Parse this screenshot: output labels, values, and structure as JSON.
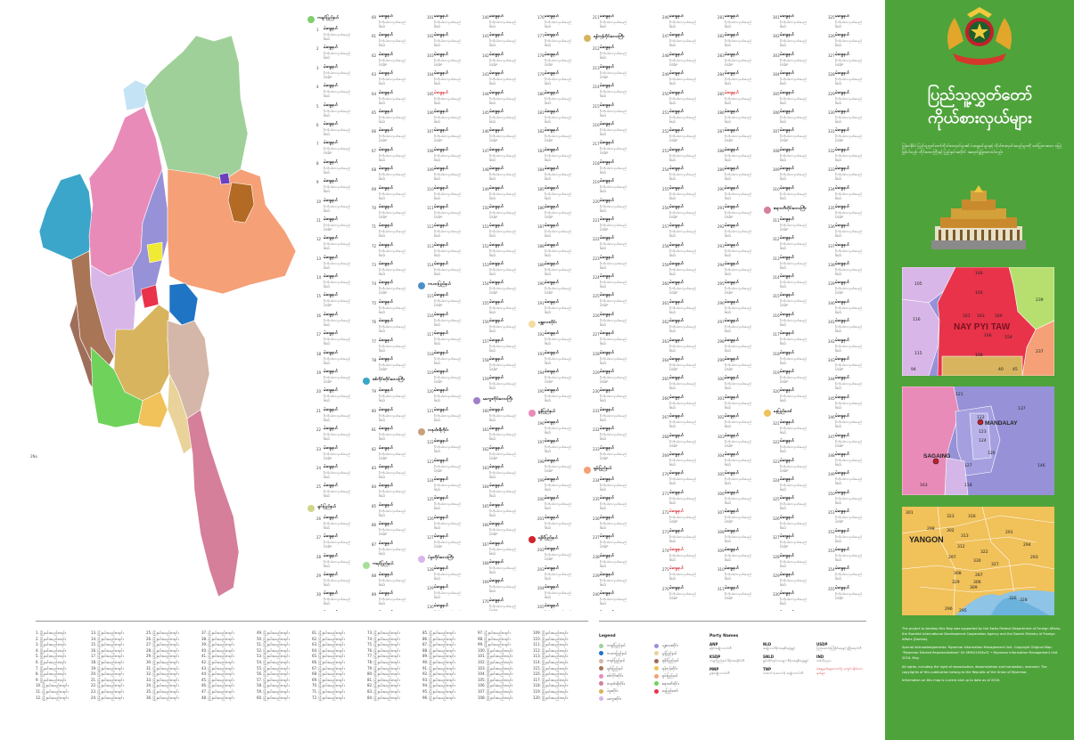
{
  "title": {
    "line1": "ပြည်သူ့လွှတ်တော်",
    "line2": "ကိုယ်စားလှယ်များ"
  },
  "intro": "မြန်မာနိုင်ငံ ပြည်သူ့လွှတ်တော်ကိုယ်စားလှယ်များ၏ မဲဆန္ဒနယ်များနှင့် ကိုယ်စားလှယ်အမည်များကို ဖော်ပြထားသော မြေပုံဖြစ်ပါသည်။ တိုင်းဒေသကြီးနှင့် ပြည်နယ်အလိုက် အရောင်ခွဲခြားထားပါသည်။",
  "colors": {
    "panel_green": "#4fa33b",
    "accent_red": "#d1232a"
  },
  "regions": [
    {
      "id": "kachin",
      "color": "#9fd09a"
    },
    {
      "id": "sagaing",
      "color": "#e98bb8"
    },
    {
      "id": "chin",
      "color": "#a87556"
    },
    {
      "id": "magway",
      "color": "#d8b6e8"
    },
    {
      "id": "mandalay",
      "color": "#9791d8"
    },
    {
      "id": "shan",
      "color": "#f5a077"
    },
    {
      "id": "kayah",
      "color": "#1f74c4"
    },
    {
      "id": "kayin",
      "color": "#d4b7a8"
    },
    {
      "id": "rakhine",
      "color": "#9f6e5a"
    },
    {
      "id": "bago",
      "color": "#d8b45f"
    },
    {
      "id": "ayeyarwady",
      "color": "#6fd25a"
    },
    {
      "id": "yangon",
      "color": "#f1c15a"
    },
    {
      "id": "mon",
      "color": "#e9d39a"
    },
    {
      "id": "tanintharyi",
      "color": "#d57f9b"
    },
    {
      "id": "naypyitaw",
      "color": "#e8334a"
    },
    {
      "id": "sagaing_nw",
      "color": "#3ba6c9"
    },
    {
      "id": "kachin_n",
      "color": "#c4e4f6"
    },
    {
      "id": "wa",
      "color": "#b26a24"
    },
    {
      "id": "kokang",
      "color": "#f0ea35"
    },
    {
      "id": "danu",
      "color": "#6b3fbe"
    }
  ],
  "map_labels": {
    "sample_num": "2No"
  },
  "list_columns": [
    {
      "head": {
        "label": "ကချင်ပြည်နယ်",
        "color": "#7fcf6f"
      },
      "start": 1,
      "count": 31,
      "reds": []
    },
    {
      "head": null,
      "start": 60,
      "count": 31,
      "reds": []
    },
    {
      "head": null,
      "start": 101,
      "count": 31,
      "reds": [
        4
      ]
    },
    {
      "head": null,
      "start": 140,
      "count": 31,
      "reds": []
    },
    {
      "head": null,
      "start": 176,
      "count": 31,
      "reds": []
    },
    {
      "head": null,
      "start": 211,
      "count": 31,
      "reds": []
    },
    {
      "head": null,
      "start": 246,
      "count": 31,
      "reds": [
        26,
        28,
        29
      ]
    },
    {
      "head": null,
      "start": 281,
      "count": 31,
      "reds": [
        4
      ]
    },
    {
      "head": null,
      "start": 301,
      "count": 31,
      "reds": []
    },
    {
      "head": null,
      "start": 325,
      "count": 31,
      "reds": []
    }
  ],
  "list_region_heads": [
    {
      "col": 1,
      "after": 19,
      "label": "စစ်ကိုင်းတိုင်းဒေသကြီး",
      "color": "#3ba6c9"
    },
    {
      "col": 0,
      "after": 25,
      "label": "ချင်းပြည်နယ်",
      "color": "#d0d58a"
    },
    {
      "col": 1,
      "after": 28,
      "label": "ကရင်ပြည်နယ်",
      "color": "#a6df9a"
    },
    {
      "col": 2,
      "after": 14,
      "label": "ကယားပြည်နယ်",
      "color": "#4c8fc7"
    },
    {
      "col": 2,
      "after": 21,
      "label": "တနင်္သာရီတိုင်း",
      "color": "#c7a27e"
    },
    {
      "col": 2,
      "after": 27,
      "label": "ပဲခူးတိုင်းဒေသကြီး",
      "color": "#d8b6e8"
    },
    {
      "col": 3,
      "after": 20,
      "label": "မကွေးတိုင်းဒေသကြီး",
      "color": "#a07fc9"
    },
    {
      "col": 4,
      "after": 16,
      "label": "မန္တလေးတိုင်း",
      "color": "#f4dca0"
    },
    {
      "col": 4,
      "after": 20,
      "label": "မွန်ပြည်နယ်",
      "color": "#e98bb8"
    },
    {
      "col": 4,
      "after": 26,
      "label": "ရခိုင်ပြည်နယ်",
      "color": "#d1232a"
    },
    {
      "col": 5,
      "after": 1,
      "label": "ရန်ကုန်တိုင်းဒေသကြီး",
      "color": "#d8b45f"
    },
    {
      "col": 5,
      "after": 23,
      "label": "ရှမ်းပြည်နယ်",
      "color": "#f5a077"
    },
    {
      "col": 8,
      "after": 10,
      "label": "ဧရာဝတီတိုင်းဒေသကြီး",
      "color": "#d57f9b"
    },
    {
      "col": 8,
      "after": 20,
      "label": "နေပြည်တော်",
      "color": "#f1c15a"
    }
  ],
  "list_text": {
    "name": "မဲဆန္ဒနယ်",
    "candidate": "ဦးကိုယ်စားလှယ်အမည်",
    "party": "NLD",
    "party_alt": "USDP"
  },
  "bottom_lists": {
    "columns": 10,
    "rows": 12,
    "item": "မြို့နယ်အမည်စာရင်း"
  },
  "legend": {
    "title": "Legend",
    "items": [
      {
        "label": "ကချင်ပြည်နယ်",
        "color": "#9fd09a"
      },
      {
        "label": "ကယားပြည်နယ်",
        "color": "#1f74c4"
      },
      {
        "label": "ကရင်ပြည်နယ်",
        "color": "#d4b7a8"
      },
      {
        "label": "ချင်းပြည်နယ်",
        "color": "#a87556"
      },
      {
        "label": "စစ်ကိုင်းတိုင်း",
        "color": "#e98bb8"
      },
      {
        "label": "တနင်္သာရီတိုင်း",
        "color": "#d57f9b"
      },
      {
        "label": "ပဲခူးတိုင်း",
        "color": "#d8b45f"
      },
      {
        "label": "မကွေးတိုင်း",
        "color": "#d8b6e8"
      },
      {
        "label": "မန္တလေးတိုင်း",
        "color": "#9791d8"
      },
      {
        "label": "မွန်ပြည်နယ်",
        "color": "#e9d39a"
      },
      {
        "label": "ရခိုင်ပြည်နယ်",
        "color": "#9f6e5a"
      },
      {
        "label": "ရန်ကုန်တိုင်း",
        "color": "#f1c15a"
      },
      {
        "label": "ရှမ်းပြည်နယ်",
        "color": "#f5a077"
      },
      {
        "label": "ဧရာဝတီတိုင်း",
        "color": "#6fd25a"
      },
      {
        "label": "နေပြည်တော်",
        "color": "#e8334a"
      }
    ]
  },
  "parties": {
    "title": "Party Names",
    "entries": [
      {
        "code": "ANP",
        "name": "ရခိုင်အမျိုးသားပါတီ",
        "red": false
      },
      {
        "code": "KSDP",
        "name": "ကချင်ပြည်နယ် ဒီမိုကရေစီပါတီ",
        "red": false
      },
      {
        "code": "MNP",
        "name": "မွန်အမျိုးသားပါတီ",
        "red": false
      },
      {
        "code": "NLD",
        "name": "အမျိုးသားဒီမိုကရေစီအဖွဲ့ချုပ်",
        "red": false
      },
      {
        "code": "SNLD",
        "name": "ရှမ်းတိုင်းရင်းသားများ ဒီမိုကရေစီအဖွဲ့ချုပ်",
        "red": false
      },
      {
        "code": "TNP",
        "name": "တအာင်း (ပလောင်) အမျိုးသားပါတီ",
        "red": false
      },
      {
        "code": "USDP",
        "name": "ပြည်ထောင်စုကြံ့ခိုင်ရေးနှင့် ဖွံ့ဖြိုးရေးပါတီ",
        "red": false
      },
      {
        "code": "IND",
        "name": "တစ်သီးပုဂ္ဂလ",
        "red": false
      },
      {
        "code": "",
        "name": "မဲဆန္ဒနယ်ရွေးကောက်ပွဲ မကျင်းပနိုင်သော နယ်များ",
        "red": true
      }
    ]
  },
  "insets": {
    "naypyitaw": {
      "name": "NAY PYI TAW",
      "nums": [
        "105",
        "148",
        "104",
        "239",
        "116",
        "161",
        "163",
        "160",
        "94",
        "115",
        "168",
        "40",
        "45",
        "237",
        "159",
        "166"
      ]
    },
    "mandalay": {
      "name1": "MANDALAY",
      "name2": "SAGAING",
      "nums": [
        "121",
        "137",
        "122",
        "123",
        "124",
        "126",
        "127",
        "163",
        "118",
        "146"
      ]
    },
    "yangon": {
      "name": "YANGON",
      "nums": [
        "301",
        "323",
        "316",
        "298",
        "302",
        "313",
        "291",
        "312",
        "322",
        "294",
        "297",
        "330",
        "327",
        "293",
        "308",
        "287",
        "329",
        "309",
        "306",
        "296",
        "328",
        "326",
        "295"
      ]
    }
  },
  "credits": [
    "The project to develop this Map was supported by the Swiss Federal Department of Foreign Affairs, the Swedish International Development Cooperation Agency and the Danish Ministry of Foreign Affairs (Danida).",
    "Special Acknowledgements: Myanmar Information Management Unit. Copyright Original Map: \"Myanmar Elected Representatives\" ID: MIMU1303v01 • Myanmar Information Management Unit 2016, May.",
    "All rights, including the right of reproduction, dissemination and translation, reserved. The copyrights of this publication belong to the Republic of the Union of Myanmar.",
    "Information on this map is current and up to date as of 2016."
  ]
}
